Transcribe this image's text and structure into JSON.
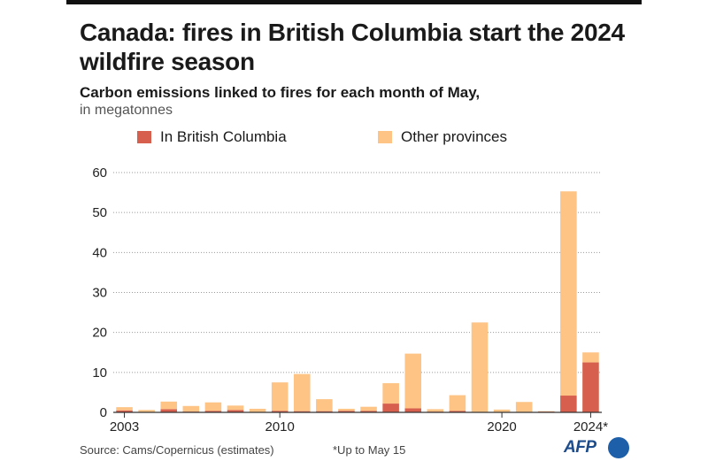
{
  "header": {
    "title": "Canada: fires in British Columbia start the 2024 wildfire season",
    "subtitle": "Carbon emissions linked to fires for each month of May,",
    "unit": "in megatonnes"
  },
  "footer": {
    "source": "Source: Cams/Copernicus (estimates)",
    "footnote": "*Up to May 15",
    "logo_text": "AFP",
    "logo_icon": "afp-circle-icon"
  },
  "colors": {
    "bc": "#d6604d",
    "other": "#fdc486",
    "grid": "#9a9a9a",
    "axis": "#333333"
  },
  "chart_data": {
    "type": "bar",
    "stacked": true,
    "categories": [
      "2003",
      "2004",
      "2005",
      "2006",
      "2007",
      "2008",
      "2009",
      "2010",
      "2011",
      "2012",
      "2013",
      "2014",
      "2015",
      "2016",
      "2017",
      "2018",
      "2019",
      "2020",
      "2021",
      "2022",
      "2023",
      "2024*"
    ],
    "series": [
      {
        "name": "In British Columbia",
        "values": [
          0.5,
          0.1,
          0.8,
          0.2,
          0.4,
          0.6,
          0.1,
          0.4,
          0.3,
          0.3,
          0.4,
          0.4,
          2.2,
          1.0,
          0.2,
          0.4,
          0.1,
          0.1,
          0.1,
          0.2,
          4.2,
          12.5
        ]
      },
      {
        "name": "Other provinces",
        "values": [
          0.8,
          0.5,
          1.9,
          1.4,
          2.1,
          1.1,
          0.8,
          7.1,
          9.3,
          3.0,
          0.5,
          1.0,
          5.1,
          13.7,
          0.6,
          3.9,
          22.4,
          0.6,
          2.5,
          0.1,
          51.1,
          2.5
        ]
      }
    ],
    "x_tick_labels": [
      {
        "index": 0,
        "label": "2003"
      },
      {
        "index": 7,
        "label": "2010"
      },
      {
        "index": 17,
        "label": "2020"
      },
      {
        "index": 21,
        "label": "2024*"
      }
    ],
    "y_ticks": [
      0,
      10,
      20,
      30,
      40,
      50,
      60
    ],
    "ylim": [
      0,
      60
    ],
    "grid": true,
    "legend_position": "top-left"
  }
}
